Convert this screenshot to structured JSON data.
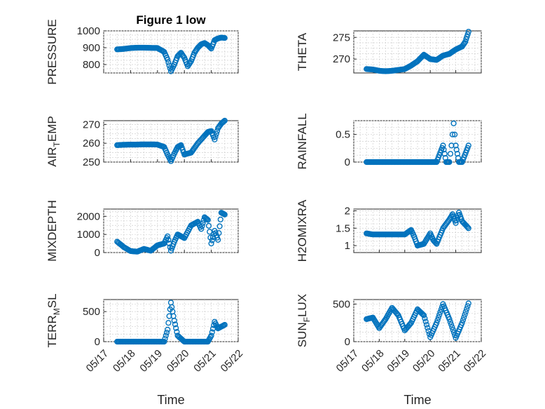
{
  "figure": {
    "marker_color": "#0072BD"
  },
  "chart_data": [
    {
      "type": "scatter",
      "id": "pressure",
      "title": "Figure 1 low",
      "ylabel": "PRESSURE",
      "xlabel": "",
      "xlim": [
        "05/17",
        "05/22"
      ],
      "ylim": [
        750,
        1000
      ],
      "yticks": [
        800,
        900,
        1000
      ],
      "xtick_labels_shown": false,
      "grid": true,
      "x": [
        "05/17 12:00",
        "05/17 18:00",
        "05/18 00:00",
        "05/18 06:00",
        "05/18 12:00",
        "05/18 18:00",
        "05/19 00:00",
        "05/19 06:00",
        "05/19 09:00",
        "05/19 12:00",
        "05/19 15:00",
        "05/19 18:00",
        "05/19 21:00",
        "05/20 00:00",
        "05/20 03:00",
        "05/20 06:00",
        "05/20 09:00",
        "05/20 12:00",
        "05/20 15:00",
        "05/20 18:00",
        "05/20 21:00",
        "05/21 00:00",
        "05/21 03:00",
        "05/21 06:00",
        "05/21 09:00",
        "05/21 12:00"
      ],
      "y": [
        890,
        893,
        898,
        900,
        900,
        899,
        898,
        875,
        830,
        760,
        800,
        850,
        870,
        840,
        790,
        820,
        870,
        900,
        920,
        928,
        915,
        895,
        945,
        955,
        960,
        958
      ]
    },
    {
      "type": "scatter",
      "id": "theta",
      "ylabel": "THETA",
      "xlabel": "",
      "xlim": [
        "05/17",
        "05/22"
      ],
      "ylim": [
        266.8,
        276.5
      ],
      "yticks": [
        270,
        275
      ],
      "xtick_labels_shown": false,
      "grid": true,
      "x": [
        "05/17 12:00",
        "05/17 18:00",
        "05/18 00:00",
        "05/18 06:00",
        "05/18 12:00",
        "05/18 18:00",
        "05/19 00:00",
        "05/19 06:00",
        "05/19 12:00",
        "05/19 18:00",
        "05/20 00:00",
        "05/20 06:00",
        "05/20 12:00",
        "05/20 18:00",
        "05/21 00:00",
        "05/21 06:00",
        "05/21 09:00",
        "05/21 12:00"
      ],
      "y": [
        267.7,
        267.6,
        267.3,
        267.2,
        267.3,
        267.5,
        267.7,
        268.5,
        269.5,
        271.0,
        270.0,
        269.8,
        270.8,
        271.2,
        272.2,
        272.9,
        274.0,
        276.3
      ]
    },
    {
      "type": "scatter",
      "id": "air_temp",
      "ylabel": "AIR_TEMP",
      "ylabel_main": "AIR",
      "ylabel_sub": "T",
      "ylabel_rest": "EMP",
      "xlabel": "",
      "xlim": [
        "05/17",
        "05/22"
      ],
      "ylim": [
        250,
        272
      ],
      "yticks": [
        250,
        260,
        270
      ],
      "xtick_labels_shown": false,
      "grid": true,
      "x": [
        "05/17 12:00",
        "05/17 18:00",
        "05/18 00:00",
        "05/18 06:00",
        "05/18 12:00",
        "05/18 18:00",
        "05/19 00:00",
        "05/19 06:00",
        "05/19 09:00",
        "05/19 12:00",
        "05/19 15:00",
        "05/19 18:00",
        "05/19 21:00",
        "05/20 00:00",
        "05/20 06:00",
        "05/20 12:00",
        "05/20 18:00",
        "05/20 21:00",
        "05/21 00:00",
        "05/21 03:00",
        "05/21 06:00",
        "05/21 09:00",
        "05/21 12:00"
      ],
      "y": [
        259,
        259.2,
        259.3,
        259.3,
        259.4,
        259.4,
        259.3,
        258,
        254,
        250.5,
        254.5,
        258,
        259,
        254,
        255,
        260,
        264,
        266,
        266.5,
        262,
        268,
        270.5,
        272
      ]
    },
    {
      "type": "scatter",
      "id": "rainfall",
      "ylabel": "RAINFALL",
      "xlabel": "",
      "xlim": [
        "05/17",
        "05/22"
      ],
      "ylim": [
        0,
        0.75
      ],
      "yticks": [
        0,
        0.5
      ],
      "xtick_labels_shown": false,
      "grid": true,
      "x": [
        "05/17 12:00",
        "05/17 18:00",
        "05/18 00:00",
        "05/18 06:00",
        "05/18 12:00",
        "05/18 18:00",
        "05/19 00:00",
        "05/19 06:00",
        "05/19 12:00",
        "05/19 18:00",
        "05/20 00:00",
        "05/20 06:00",
        "05/20 12:00",
        "05/20 15:00",
        "05/20 18:00",
        "05/20 20:00",
        "05/20 22:00",
        "05/21 00:00",
        "05/21 03:00",
        "05/21 06:00",
        "05/21 12:00"
      ],
      "y": [
        0,
        0,
        0,
        0,
        0,
        0,
        0,
        0,
        0,
        0,
        0,
        0,
        0.3,
        0,
        0,
        0.3,
        0.7,
        0.3,
        0,
        0,
        0.3
      ]
    },
    {
      "type": "scatter",
      "id": "mixdepth",
      "ylabel": "MIXDEPTH",
      "xlabel": "",
      "xlim": [
        "05/17",
        "05/22"
      ],
      "ylim": [
        0,
        2400
      ],
      "yticks": [
        0,
        1000,
        2000
      ],
      "xtick_labels_shown": false,
      "grid": true,
      "x": [
        "05/17 12:00",
        "05/17 18:00",
        "05/18 00:00",
        "05/18 06:00",
        "05/18 12:00",
        "05/18 18:00",
        "05/19 00:00",
        "05/19 06:00",
        "05/19 09:00",
        "05/19 12:00",
        "05/19 15:00",
        "05/19 18:00",
        "05/20 00:00",
        "05/20 06:00",
        "05/20 12:00",
        "05/20 15:00",
        "05/20 18:00",
        "05/20 21:00",
        "05/21 00:00",
        "05/21 03:00",
        "05/21 06:00",
        "05/21 09:00",
        "05/21 12:00"
      ],
      "y": [
        600,
        300,
        80,
        50,
        200,
        100,
        400,
        500,
        900,
        100,
        600,
        1000,
        800,
        1500,
        1700,
        1300,
        1950,
        1800,
        500,
        1200,
        700,
        2200,
        2100
      ]
    },
    {
      "type": "scatter",
      "id": "h2omixra",
      "ylabel": "H2OMIXRA",
      "xlabel": "",
      "xlim": [
        "05/17",
        "05/22"
      ],
      "ylim": [
        0.8,
        2.05
      ],
      "yticks": [
        1,
        1.5,
        2
      ],
      "xtick_labels_shown": false,
      "grid": true,
      "x": [
        "05/17 12:00",
        "05/17 18:00",
        "05/18 00:00",
        "05/18 06:00",
        "05/18 12:00",
        "05/18 18:00",
        "05/19 00:00",
        "05/19 06:00",
        "05/19 09:00",
        "05/19 12:00",
        "05/19 18:00",
        "05/20 00:00",
        "05/20 03:00",
        "05/20 06:00",
        "05/20 12:00",
        "05/20 18:00",
        "05/20 21:00",
        "05/21 00:00",
        "05/21 03:00",
        "05/21 06:00",
        "05/21 12:00"
      ],
      "y": [
        1.35,
        1.32,
        1.32,
        1.32,
        1.32,
        1.32,
        1.32,
        1.45,
        1.25,
        1.0,
        1.05,
        1.35,
        1.15,
        1.05,
        1.5,
        1.75,
        1.9,
        1.65,
        1.95,
        1.7,
        1.5
      ]
    },
    {
      "type": "scatter",
      "id": "terr_msl",
      "ylabel": "TERR_MSL",
      "ylabel_main": "TERR",
      "ylabel_sub": "M",
      "ylabel_rest": "SL",
      "xlabel": "Time",
      "xlim": [
        "05/17",
        "05/22"
      ],
      "ylim": [
        0,
        700
      ],
      "yticks": [
        0,
        500
      ],
      "xticks": [
        "05/17",
        "05/18",
        "05/19",
        "05/20",
        "05/21",
        "05/22"
      ],
      "grid": true,
      "x": [
        "05/17 12:00",
        "05/18 00:00",
        "05/18 12:00",
        "05/19 00:00",
        "05/19 06:00",
        "05/19 09:00",
        "05/19 12:00",
        "05/19 15:00",
        "05/19 18:00",
        "05/20 00:00",
        "05/20 12:00",
        "05/20 21:00",
        "05/21 00:00",
        "05/21 03:00",
        "05/21 06:00",
        "05/21 12:00"
      ],
      "y": [
        0,
        0,
        0,
        0,
        0,
        200,
        650,
        350,
        100,
        0,
        0,
        0,
        100,
        330,
        220,
        280
      ]
    },
    {
      "type": "scatter",
      "id": "sun_flux",
      "ylabel": "SUN_FLUX",
      "ylabel_main": "SUN",
      "ylabel_sub": "F",
      "ylabel_rest": "LUX",
      "xlabel": "Time",
      "xlim": [
        "05/17",
        "05/22"
      ],
      "ylim": [
        0,
        560
      ],
      "yticks": [
        0,
        500
      ],
      "xticks": [
        "05/17",
        "05/18",
        "05/19",
        "05/20",
        "05/21",
        "05/22"
      ],
      "grid": true,
      "x": [
        "05/17 12:00",
        "05/17 18:00",
        "05/18 00:00",
        "05/18 06:00",
        "05/18 12:00",
        "05/18 18:00",
        "05/19 00:00",
        "05/19 06:00",
        "05/19 12:00",
        "05/19 18:00",
        "05/20 00:00",
        "05/20 06:00",
        "05/20 12:00",
        "05/20 18:00",
        "05/21 00:00",
        "05/21 06:00",
        "05/21 12:00"
      ],
      "y": [
        300,
        320,
        180,
        300,
        450,
        350,
        150,
        250,
        430,
        350,
        60,
        250,
        500,
        300,
        50,
        250,
        510
      ]
    }
  ]
}
